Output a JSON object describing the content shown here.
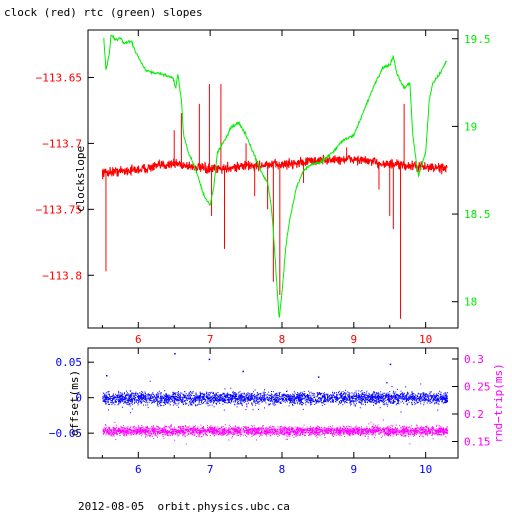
{
  "title": "clock (red) rtc (green) slopes",
  "footer": "2012-08-05  orbit.physics.ubc.ca",
  "colors": {
    "red": "#ff0000",
    "green": "#00ee00",
    "blue": "#0000ff",
    "magenta": "#ff00ff",
    "axis": "#000000"
  },
  "chart_data": [
    {
      "type": "line",
      "xlim": [
        5.3,
        10.45
      ],
      "x_ticks": [
        "6",
        "7",
        "8",
        "9",
        "10"
      ],
      "left_axis": {
        "label": "clockslope",
        "ylim": [
          -113.84,
          -113.614
        ],
        "ticks": [
          "-113.65",
          "-113.7",
          "-113.75",
          "-113.8"
        ]
      },
      "right_axis": {
        "label": "",
        "ylim": [
          17.85,
          19.55
        ],
        "ticks": [
          "19.5",
          "19",
          "18.5",
          "18"
        ]
      },
      "series": [
        {
          "axis": "left",
          "color": "red",
          "baseline": [
            [
              5.5,
              -113.722
            ],
            [
              6.0,
              -113.72
            ],
            [
              6.5,
              -113.715
            ],
            [
              7.0,
              -113.72
            ],
            [
              7.5,
              -113.717
            ],
            [
              8.0,
              -113.716
            ],
            [
              8.5,
              -113.713
            ],
            [
              9.0,
              -113.712
            ],
            [
              9.5,
              -113.716
            ],
            [
              10.0,
              -113.718
            ],
            [
              10.3,
              -113.719
            ]
          ],
          "spikes": [
            [
              5.55,
              -113.797
            ],
            [
              6.5,
              -113.69
            ],
            [
              6.6,
              -113.677
            ],
            [
              6.85,
              -113.67
            ],
            [
              6.99,
              -113.655
            ],
            [
              7.02,
              -113.755
            ],
            [
              7.15,
              -113.655
            ],
            [
              7.2,
              -113.78
            ],
            [
              7.5,
              -113.7
            ],
            [
              7.62,
              -113.74
            ],
            [
              7.8,
              -113.75
            ],
            [
              7.88,
              -113.805
            ],
            [
              7.97,
              -113.815
            ],
            [
              8.3,
              -113.73
            ],
            [
              8.9,
              -113.703
            ],
            [
              9.35,
              -113.735
            ],
            [
              9.5,
              -113.755
            ],
            [
              9.55,
              -113.765
            ],
            [
              9.65,
              -113.833
            ],
            [
              9.7,
              -113.67
            ]
          ]
        },
        {
          "axis": "right",
          "color": "green",
          "points": [
            [
              5.52,
              19.5
            ],
            [
              5.55,
              19.32
            ],
            [
              5.6,
              19.42
            ],
            [
              5.62,
              19.52
            ],
            [
              5.7,
              19.49
            ],
            [
              5.75,
              19.51
            ],
            [
              5.8,
              19.47
            ],
            [
              5.9,
              19.49
            ],
            [
              5.97,
              19.42
            ],
            [
              6.1,
              19.32
            ],
            [
              6.3,
              19.3
            ],
            [
              6.48,
              19.28
            ],
            [
              6.52,
              19.22
            ],
            [
              6.55,
              19.3
            ],
            [
              6.6,
              19.15
            ],
            [
              6.63,
              18.95
            ],
            [
              6.7,
              18.85
            ],
            [
              6.8,
              18.75
            ],
            [
              6.92,
              18.6
            ],
            [
              7.0,
              18.55
            ],
            [
              7.05,
              18.65
            ],
            [
              7.1,
              18.85
            ],
            [
              7.2,
              18.92
            ],
            [
              7.3,
              19.0
            ],
            [
              7.4,
              19.02
            ],
            [
              7.5,
              18.95
            ],
            [
              7.6,
              18.85
            ],
            [
              7.7,
              18.75
            ],
            [
              7.8,
              18.68
            ],
            [
              7.85,
              18.55
            ],
            [
              7.88,
              18.4
            ],
            [
              7.92,
              18.15
            ],
            [
              7.96,
              17.9
            ],
            [
              8.0,
              18.05
            ],
            [
              8.05,
              18.3
            ],
            [
              8.1,
              18.45
            ],
            [
              8.2,
              18.65
            ],
            [
              8.3,
              18.75
            ],
            [
              8.4,
              18.78
            ],
            [
              8.55,
              18.8
            ],
            [
              8.7,
              18.85
            ],
            [
              8.85,
              18.92
            ],
            [
              9.0,
              18.95
            ],
            [
              9.1,
              19.05
            ],
            [
              9.2,
              19.15
            ],
            [
              9.3,
              19.25
            ],
            [
              9.4,
              19.33
            ],
            [
              9.5,
              19.35
            ],
            [
              9.55,
              19.4
            ],
            [
              9.6,
              19.3
            ],
            [
              9.7,
              19.22
            ],
            [
              9.78,
              19.25
            ],
            [
              9.82,
              18.95
            ],
            [
              9.87,
              18.8
            ],
            [
              9.9,
              18.72
            ],
            [
              10.0,
              18.85
            ],
            [
              10.05,
              19.15
            ],
            [
              10.1,
              19.25
            ],
            [
              10.2,
              19.3
            ],
            [
              10.3,
              19.38
            ]
          ]
        }
      ]
    },
    {
      "type": "scatter",
      "xlim": [
        5.3,
        10.45
      ],
      "x_ticks": [
        "6",
        "7",
        "8",
        "9",
        "10"
      ],
      "left_axis": {
        "label": "offset(ms)",
        "ylim": [
          -0.085,
          0.07
        ],
        "ticks": [
          "0.05",
          "0",
          "-0.05"
        ]
      },
      "right_axis": {
        "label": "rnd−trip(ms)",
        "ylim": [
          0.12,
          0.32
        ],
        "ticks": [
          "0.3",
          "0.25",
          "0.2",
          "0.15"
        ]
      },
      "series": [
        {
          "axis": "left",
          "color": "blue",
          "x_range": [
            5.5,
            10.3
          ],
          "center": 0.0,
          "spread": 0.012,
          "outliers": [
            [
              6.5,
              0.063
            ],
            [
              6.98,
              0.055
            ],
            [
              7.45,
              0.038
            ],
            [
              8.5,
              0.03
            ],
            [
              9.5,
              0.048
            ],
            [
              5.55,
              0.032
            ]
          ]
        },
        {
          "axis": "right",
          "color": "magenta",
          "x_range": [
            5.5,
            10.3
          ],
          "center": 0.17,
          "spread": 0.012,
          "outliers": [
            [
              6.5,
              0.22
            ],
            [
              7.5,
              0.215
            ],
            [
              9.5,
              0.23
            ]
          ]
        }
      ]
    }
  ]
}
